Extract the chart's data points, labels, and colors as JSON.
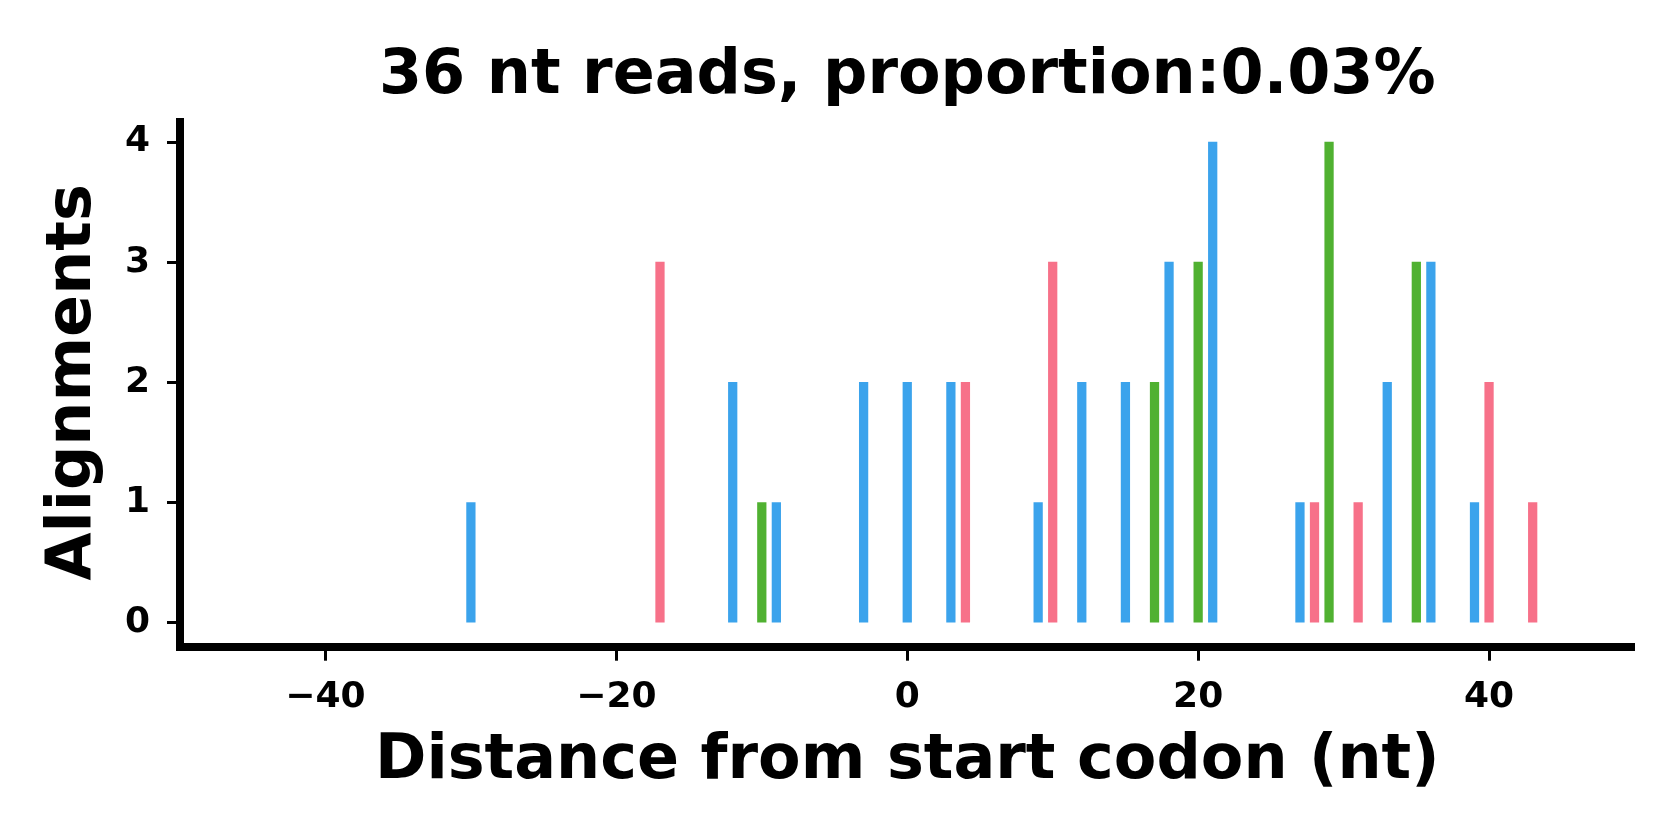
{
  "chart_data": {
    "type": "bar",
    "title": "36 nt reads, proportion:0.03%",
    "xlabel": "Distance from start codon (nt)",
    "ylabel": "Alignments",
    "xlim": [
      -50,
      50
    ],
    "xticks": [
      {
        "value": -40,
        "label": "−40"
      },
      {
        "value": -20,
        "label": "−20"
      },
      0,
      20,
      40
    ],
    "ylim": [
      -0.2,
      4.2
    ],
    "yticks": [
      0,
      1,
      2,
      3,
      4
    ],
    "series": [
      {
        "color": "#3ba3ec",
        "x": [
          -30,
          -12,
          -9,
          -3,
          0,
          3,
          9,
          12,
          15,
          18,
          21,
          27,
          33,
          36,
          39
        ],
        "values": [
          1,
          2,
          1,
          2,
          2,
          2,
          1,
          2,
          2,
          3,
          4,
          1,
          2,
          3,
          1
        ]
      },
      {
        "color": "#f77189",
        "x": [
          -17,
          4,
          10,
          28,
          31,
          40,
          43
        ],
        "values": [
          3,
          2,
          3,
          1,
          1,
          2,
          1
        ]
      },
      {
        "color": "#50b131",
        "x": [
          -10,
          17,
          20,
          29,
          35
        ],
        "values": [
          1,
          2,
          3,
          4,
          3
        ]
      }
    ]
  }
}
